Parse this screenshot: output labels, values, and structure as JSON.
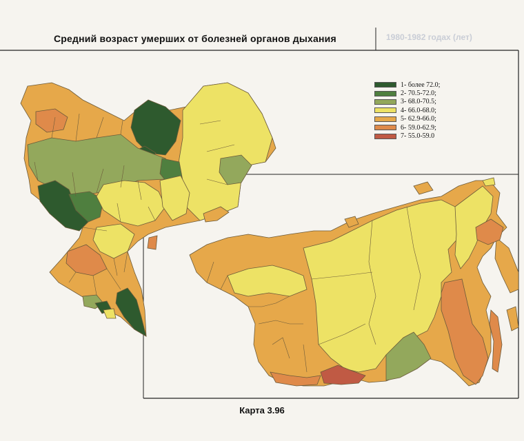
{
  "title": "Средний возраст умерших от болезней органов дыхания",
  "ghost_text": "1980-1982 годах (лет)",
  "caption": "Карта 3.96",
  "legend": [
    {
      "label": "1- более 72.0;",
      "color": "#2e5a2e"
    },
    {
      "label": "2- 70.5-72.0;",
      "color": "#4f7f3f"
    },
    {
      "label": "3- 68.0-70.5;",
      "color": "#93a85c"
    },
    {
      "label": "4- 66.0-68.0;",
      "color": "#ede265"
    },
    {
      "label": "5- 62.9-66.0;",
      "color": "#e6a84a"
    },
    {
      "label": "6- 59.0-62.9;",
      "color": "#df8a4a"
    },
    {
      "label": "7- 55.0-59.0",
      "color": "#c05a44"
    }
  ]
}
